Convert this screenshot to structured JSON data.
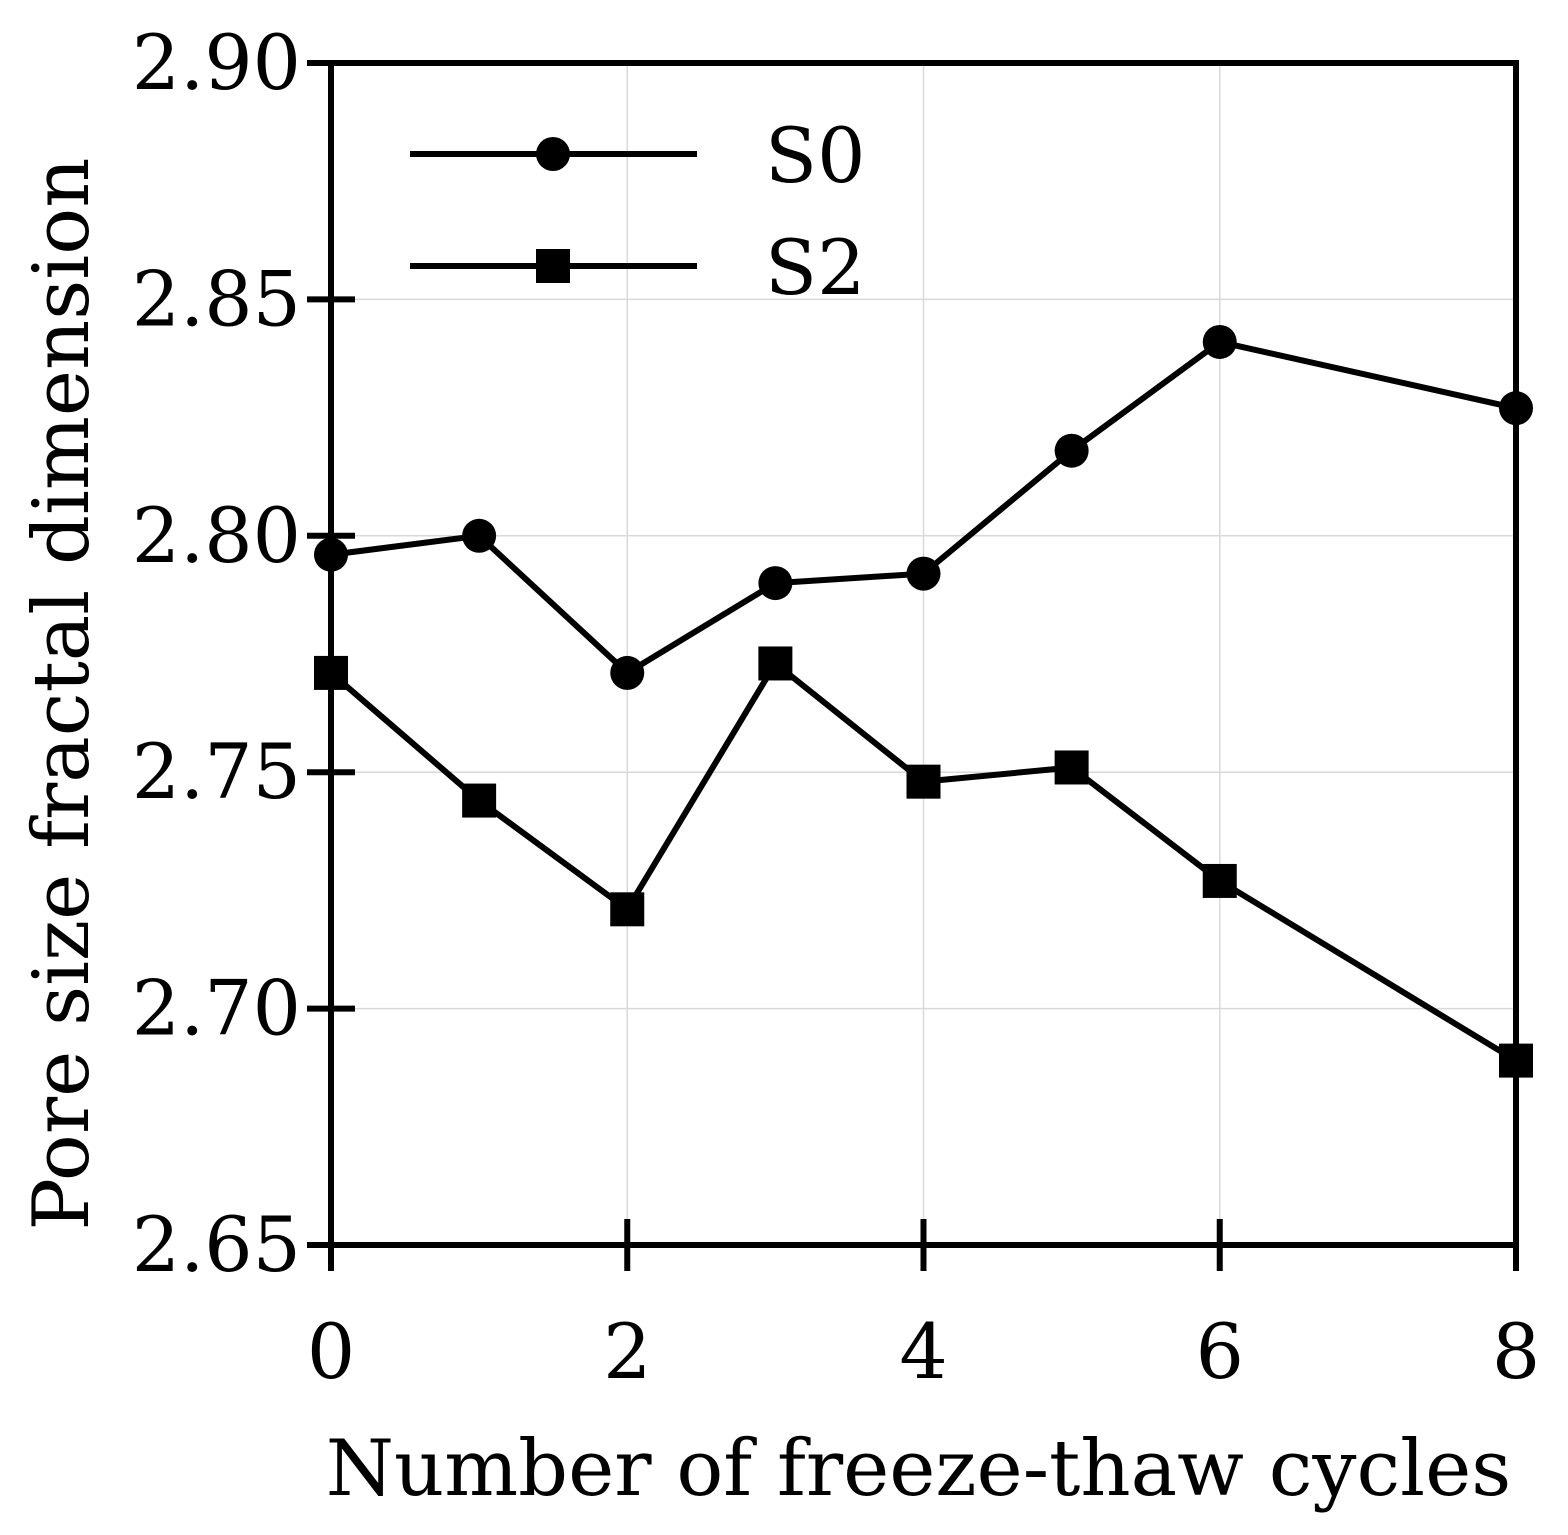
{
  "chart_data": {
    "type": "line",
    "title": "",
    "xlabel": "Number of freeze-thaw cycles",
    "ylabel": "Pore size fractal dimension",
    "xlim": [
      0,
      8
    ],
    "ylim": [
      2.65,
      2.9
    ],
    "xticks": [
      0,
      2,
      4,
      6,
      8
    ],
    "xtick_labels": [
      "0",
      "2",
      "4",
      "6",
      "8"
    ],
    "yticks": [
      2.65,
      2.7,
      2.75,
      2.8,
      2.85,
      2.9
    ],
    "ytick_labels": [
      "2.65",
      "2.70",
      "2.75",
      "2.80",
      "2.85",
      "2.90"
    ],
    "grid": true,
    "legend_position": "top-left",
    "series": [
      {
        "name": "S0",
        "marker": "circle",
        "x": [
          0,
          1,
          2,
          3,
          4,
          5,
          6,
          8
        ],
        "values": [
          2.796,
          2.8,
          2.771,
          2.79,
          2.792,
          2.818,
          2.841,
          2.827
        ]
      },
      {
        "name": "S2",
        "marker": "square",
        "x": [
          0,
          1,
          2,
          3,
          4,
          5,
          6,
          8
        ],
        "values": [
          2.771,
          2.744,
          2.721,
          2.773,
          2.748,
          2.751,
          2.727,
          2.689
        ]
      }
    ]
  }
}
